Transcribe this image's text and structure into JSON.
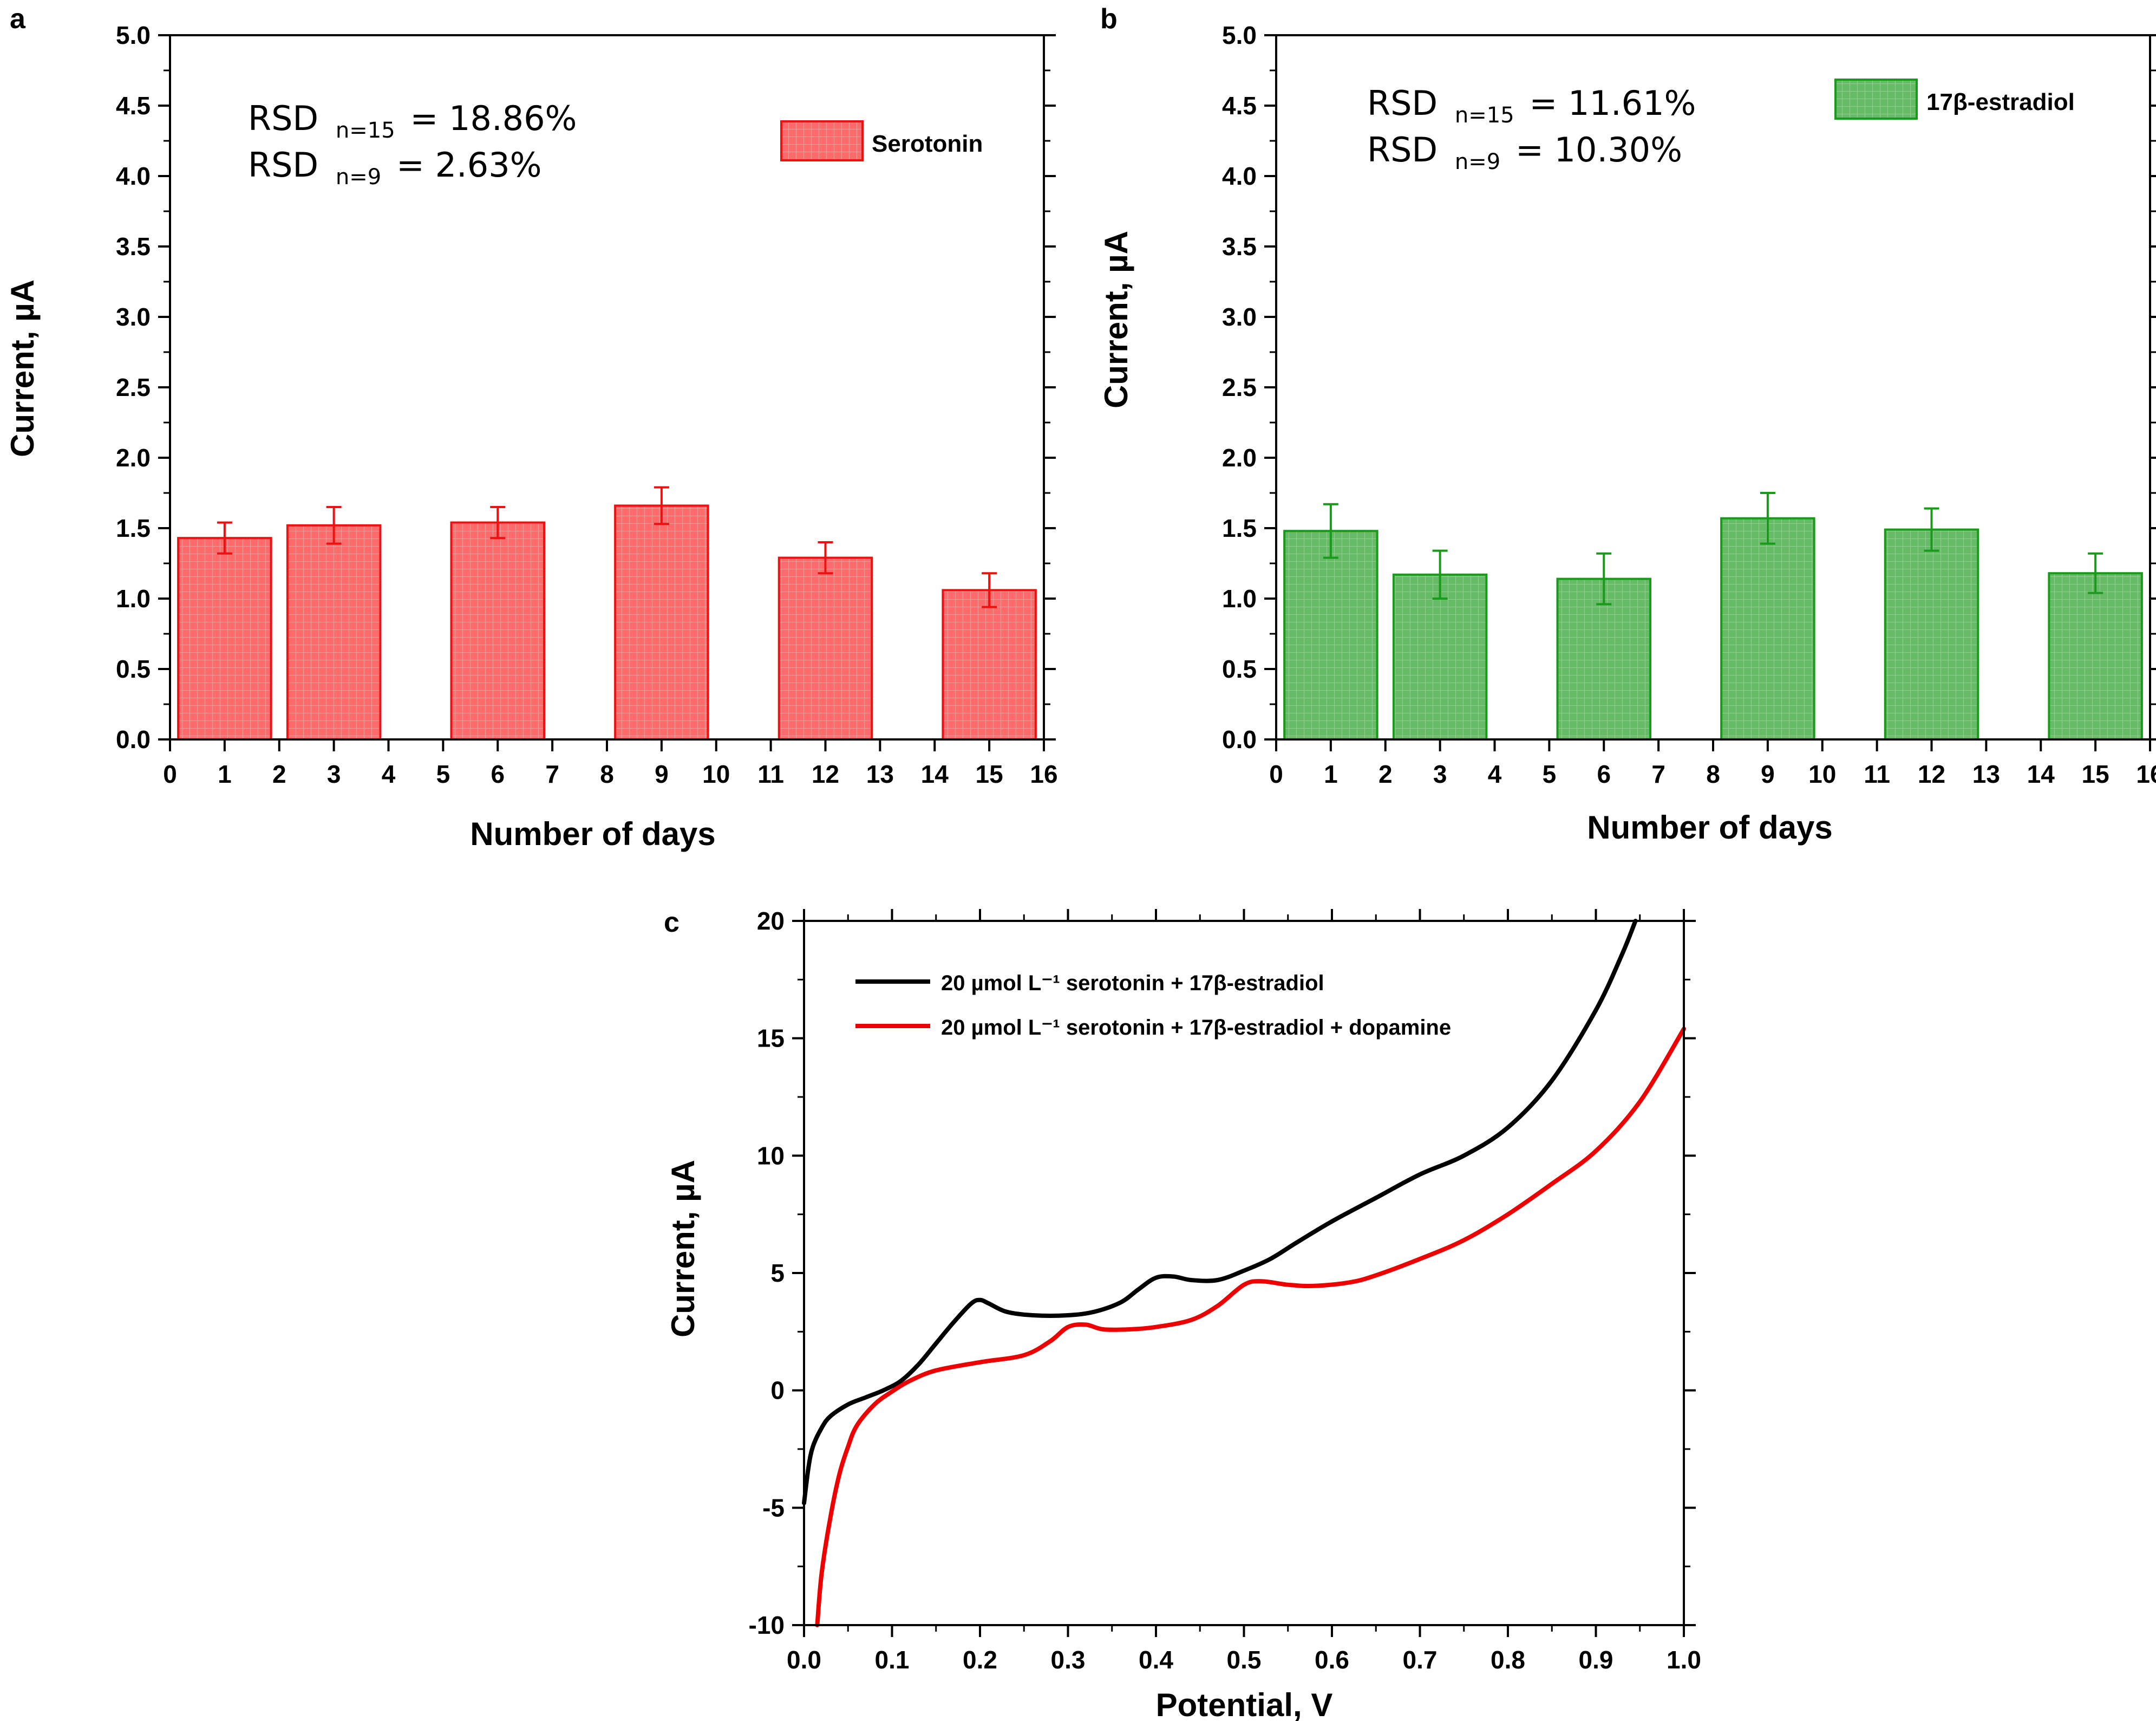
{
  "chart_data": [
    {
      "panel_label": "a",
      "type": "bar",
      "xlabel": "Number of days",
      "ylabel": "Current, µA",
      "ylim": [
        0,
        5
      ],
      "xlim": [
        0,
        16
      ],
      "xticks": [
        "0",
        "1",
        "2",
        "3",
        "4",
        "5",
        "6",
        "7",
        "8",
        "9",
        "10",
        "11",
        "12",
        "13",
        "14",
        "15",
        "16"
      ],
      "yticks": [
        "0.0",
        "0.5",
        "1.0",
        "1.5",
        "2.0",
        "2.5",
        "3.0",
        "3.5",
        "4.0",
        "4.5",
        "5.0"
      ],
      "categories": [
        1,
        3,
        6,
        9,
        12,
        15
      ],
      "values": [
        1.43,
        1.52,
        1.54,
        1.66,
        1.29,
        1.06
      ],
      "errors": [
        0.11,
        0.13,
        0.11,
        0.13,
        0.11,
        0.12
      ],
      "series_name": "Serotonin",
      "color": "#ff6a6a",
      "edge_color": "#ee1111",
      "annotations": [
        {
          "prefix": "RSD",
          "sub": "n=15",
          "suffix": "= 18.86%"
        },
        {
          "prefix": "RSD",
          "sub": "n=9",
          "suffix": "= 2.63%"
        }
      ]
    },
    {
      "panel_label": "b",
      "type": "bar",
      "xlabel": "Number of days",
      "ylabel": "Current, µA",
      "ylim": [
        0,
        5
      ],
      "xlim": [
        0,
        16
      ],
      "xticks": [
        "0",
        "1",
        "2",
        "3",
        "4",
        "5",
        "6",
        "7",
        "8",
        "9",
        "10",
        "11",
        "12",
        "13",
        "14",
        "15",
        "16"
      ],
      "yticks": [
        "0.0",
        "0.5",
        "1.0",
        "1.5",
        "2.0",
        "2.5",
        "3.0",
        "3.5",
        "4.0",
        "4.5",
        "5.0"
      ],
      "categories": [
        1,
        3,
        6,
        9,
        12,
        15
      ],
      "values": [
        1.48,
        1.17,
        1.14,
        1.57,
        1.49,
        1.18
      ],
      "errors": [
        0.19,
        0.17,
        0.18,
        0.18,
        0.15,
        0.14
      ],
      "series_name": "17β-estradiol",
      "color": "#66bb66",
      "edge_color": "#1a9a1a",
      "annotations": [
        {
          "prefix": "RSD",
          "sub": "n=15",
          "suffix": "= 11.61%"
        },
        {
          "prefix": "RSD",
          "sub": "n=9",
          "suffix": "= 10.30%"
        }
      ]
    },
    {
      "panel_label": "c",
      "type": "line",
      "xlabel": "Potential, V",
      "ylabel": "Current, µA",
      "xlim": [
        0,
        1
      ],
      "ylim": [
        -10,
        20
      ],
      "xticks": [
        "0.0",
        "0.1",
        "0.2",
        "0.3",
        "0.4",
        "0.5",
        "0.6",
        "0.7",
        "0.8",
        "0.9",
        "1.0"
      ],
      "yticks": [
        "-10",
        "-5",
        "0",
        "5",
        "10",
        "15",
        "20"
      ],
      "series": [
        {
          "name": "20 µmol L⁻¹ serotonin + 17β-estradiol",
          "color": "#000000",
          "x": [
            0,
            0.005,
            0.01,
            0.02,
            0.03,
            0.05,
            0.07,
            0.09,
            0.11,
            0.13,
            0.15,
            0.17,
            0.19,
            0.2,
            0.21,
            0.23,
            0.26,
            0.3,
            0.33,
            0.36,
            0.38,
            0.4,
            0.42,
            0.44,
            0.47,
            0.5,
            0.53,
            0.56,
            0.6,
            0.65,
            0.7,
            0.75,
            0.8,
            0.85,
            0.9,
            0.93,
            0.945
          ],
          "y": [
            -4.8,
            -3.3,
            -2.4,
            -1.6,
            -1.1,
            -0.6,
            -0.3,
            0.0,
            0.4,
            1.1,
            2.0,
            2.9,
            3.7,
            3.85,
            3.7,
            3.35,
            3.2,
            3.2,
            3.35,
            3.75,
            4.3,
            4.8,
            4.85,
            4.7,
            4.7,
            5.1,
            5.6,
            6.3,
            7.2,
            8.2,
            9.2,
            10.0,
            11.2,
            13.2,
            16.2,
            18.6,
            20.0
          ]
        },
        {
          "name": "20 µmol L⁻¹ serotonin + 17β-estradiol + dopamine",
          "color": "#ee0000",
          "x": [
            0.015,
            0.02,
            0.03,
            0.04,
            0.05,
            0.06,
            0.08,
            0.1,
            0.12,
            0.15,
            0.2,
            0.25,
            0.28,
            0.3,
            0.32,
            0.34,
            0.37,
            0.4,
            0.44,
            0.47,
            0.5,
            0.52,
            0.55,
            0.58,
            0.62,
            0.65,
            0.7,
            0.75,
            0.8,
            0.85,
            0.9,
            0.95,
            1.0
          ],
          "y": [
            -10.0,
            -7.8,
            -5.4,
            -3.6,
            -2.4,
            -1.5,
            -0.6,
            -0.05,
            0.4,
            0.85,
            1.2,
            1.5,
            2.1,
            2.7,
            2.8,
            2.6,
            2.6,
            2.7,
            3.0,
            3.6,
            4.5,
            4.65,
            4.5,
            4.45,
            4.6,
            4.9,
            5.6,
            6.4,
            7.5,
            8.8,
            10.2,
            12.3,
            15.4
          ]
        }
      ]
    }
  ]
}
